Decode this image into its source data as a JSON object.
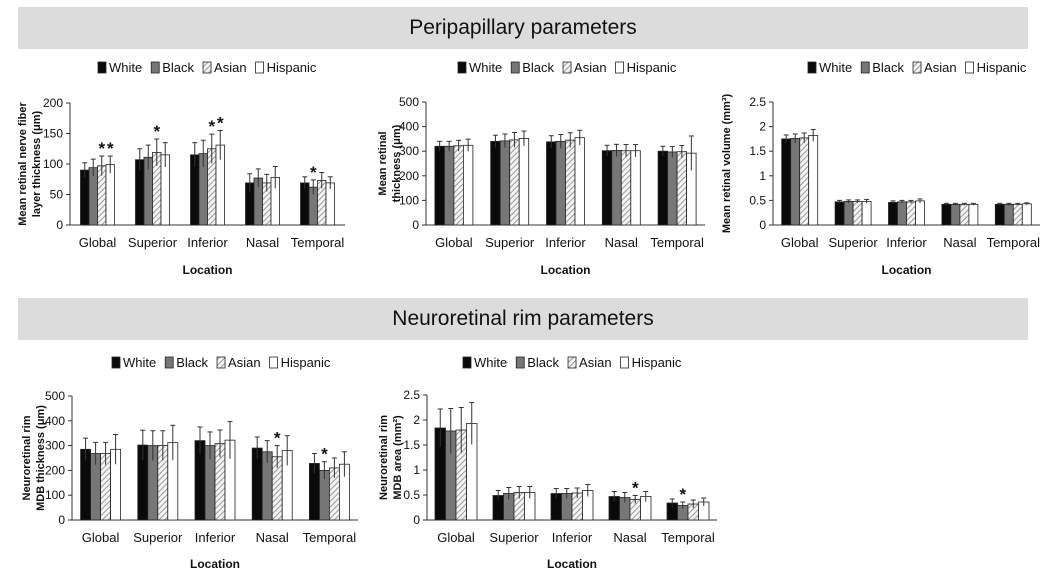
{
  "banners": {
    "peripapillary": "Peripapillary parameters",
    "neuroretinal": "Neuroretinal rim parameters"
  },
  "colors": {
    "White": "#0a0a0a",
    "Black": "#777777",
    "Asian": "hatch",
    "Hispanic": "#ffffff",
    "banner": "#dcdcdc"
  },
  "chart_data": [
    {
      "type": "bar",
      "group": "Peripapillary parameters",
      "ylabel": "Mean retinal nerve fiber layer thickness (μm)",
      "xlabel": "Location",
      "categories": [
        "Global",
        "Superior",
        "Inferior",
        "Nasal",
        "Temporal"
      ],
      "ylim": [
        0,
        200
      ],
      "yticks": [
        0,
        50,
        100,
        150,
        200
      ],
      "legend": "top",
      "series": [
        {
          "name": "White",
          "values": [
            90,
            107,
            115,
            69,
            69
          ],
          "errors": [
            12,
            18,
            20,
            15,
            10
          ]
        },
        {
          "name": "Black",
          "values": [
            94,
            111,
            117,
            77,
            62
          ],
          "errors": [
            14,
            20,
            22,
            15,
            12
          ]
        },
        {
          "name": "Asian",
          "values": [
            97,
            119,
            125,
            69,
            73
          ],
          "errors": [
            16,
            22,
            24,
            14,
            13
          ]
        },
        {
          "name": "Hispanic",
          "values": [
            99,
            115,
            131,
            78,
            69
          ],
          "errors": [
            14,
            20,
            24,
            18,
            10
          ]
        }
      ],
      "annotations": [
        {
          "category": "Global",
          "series": "Asian",
          "text": "*"
        },
        {
          "category": "Global",
          "series": "Hispanic",
          "text": "*"
        },
        {
          "category": "Superior",
          "series": "Asian",
          "text": "*"
        },
        {
          "category": "Inferior",
          "series": "Asian",
          "text": "*"
        },
        {
          "category": "Inferior",
          "series": "Hispanic",
          "text": "*"
        },
        {
          "category": "Temporal",
          "series": "Black",
          "text": "*"
        }
      ]
    },
    {
      "type": "bar",
      "group": "Peripapillary parameters",
      "ylabel": "Mean retinal thickness (μm)",
      "xlabel": "Location",
      "categories": [
        "Global",
        "Superior",
        "Inferior",
        "Nasal",
        "Temporal"
      ],
      "ylim": [
        0,
        500
      ],
      "yticks": [
        0,
        100,
        200,
        300,
        400,
        500
      ],
      "legend": "top",
      "series": [
        {
          "name": "White",
          "values": [
            320,
            340,
            338,
            302,
            300
          ],
          "errors": [
            20,
            25,
            25,
            22,
            20
          ]
        },
        {
          "name": "Black",
          "values": [
            320,
            342,
            340,
            303,
            297
          ],
          "errors": [
            20,
            28,
            28,
            25,
            22
          ]
        },
        {
          "name": "Asian",
          "values": [
            322,
            346,
            345,
            302,
            298
          ],
          "errors": [
            22,
            30,
            30,
            25,
            25
          ]
        },
        {
          "name": "Hispanic",
          "values": [
            324,
            352,
            355,
            302,
            292
          ],
          "errors": [
            25,
            30,
            30,
            25,
            70
          ]
        }
      ],
      "annotations": []
    },
    {
      "type": "bar",
      "group": "Peripapillary parameters",
      "ylabel": "Mean retinal volume (mm³)",
      "xlabel": "Location",
      "categories": [
        "Global",
        "Superior",
        "Inferior",
        "Nasal",
        "Temporal"
      ],
      "ylim": [
        0,
        2.5
      ],
      "yticks": [
        0,
        0.5,
        1,
        1.5,
        2,
        2.5
      ],
      "legend": "top",
      "series": [
        {
          "name": "White",
          "values": [
            1.75,
            0.47,
            0.46,
            0.42,
            0.42
          ],
          "errors": [
            0.08,
            0.03,
            0.03,
            0.02,
            0.02
          ]
        },
        {
          "name": "Black",
          "values": [
            1.76,
            0.48,
            0.47,
            0.42,
            0.42
          ],
          "errors": [
            0.09,
            0.03,
            0.03,
            0.02,
            0.02
          ]
        },
        {
          "name": "Asian",
          "values": [
            1.77,
            0.48,
            0.47,
            0.42,
            0.42
          ],
          "errors": [
            0.1,
            0.03,
            0.03,
            0.02,
            0.02
          ]
        },
        {
          "name": "Hispanic",
          "values": [
            1.82,
            0.48,
            0.49,
            0.42,
            0.43
          ],
          "errors": [
            0.12,
            0.04,
            0.04,
            0.02,
            0.02
          ]
        }
      ],
      "annotations": []
    },
    {
      "type": "bar",
      "group": "Neuroretinal rim parameters",
      "ylabel": "Neuroretinal rim MDB thickness (μm)",
      "xlabel": "Location",
      "categories": [
        "Global",
        "Superior",
        "Inferior",
        "Nasal",
        "Temporal"
      ],
      "ylim": [
        0,
        500
      ],
      "yticks": [
        0,
        100,
        200,
        300,
        400,
        500
      ],
      "legend": "top",
      "series": [
        {
          "name": "White",
          "values": [
            285,
            302,
            320,
            290,
            228
          ],
          "errors": [
            45,
            60,
            55,
            45,
            40
          ]
        },
        {
          "name": "Black",
          "values": [
            268,
            300,
            300,
            275,
            200
          ],
          "errors": [
            45,
            60,
            55,
            45,
            35
          ]
        },
        {
          "name": "Asian",
          "values": [
            268,
            300,
            308,
            255,
            210
          ],
          "errors": [
            45,
            60,
            55,
            45,
            40
          ]
        },
        {
          "name": "Hispanic",
          "values": [
            285,
            312,
            322,
            280,
            225
          ],
          "errors": [
            60,
            70,
            75,
            60,
            50
          ]
        }
      ],
      "annotations": [
        {
          "category": "Nasal",
          "series": "Asian",
          "text": "*"
        },
        {
          "category": "Temporal",
          "series": "Black",
          "text": "*"
        }
      ]
    },
    {
      "type": "bar",
      "group": "Neuroretinal rim parameters",
      "ylabel": "Neuroretinal rim MDB area (mm²)",
      "xlabel": "Location",
      "categories": [
        "Global",
        "Superior",
        "Inferior",
        "Nasal",
        "Temporal"
      ],
      "ylim": [
        0,
        2.5
      ],
      "yticks": [
        0,
        0.5,
        1,
        1.5,
        2,
        2.5
      ],
      "legend": "top",
      "series": [
        {
          "name": "White",
          "values": [
            1.84,
            0.49,
            0.53,
            0.47,
            0.34
          ],
          "errors": [
            0.38,
            0.1,
            0.1,
            0.1,
            0.08
          ]
        },
        {
          "name": "Black",
          "values": [
            1.78,
            0.53,
            0.53,
            0.45,
            0.29
          ],
          "errors": [
            0.45,
            0.12,
            0.1,
            0.1,
            0.07
          ]
        },
        {
          "name": "Asian",
          "values": [
            1.8,
            0.55,
            0.54,
            0.41,
            0.32
          ],
          "errors": [
            0.45,
            0.12,
            0.1,
            0.08,
            0.08
          ]
        },
        {
          "name": "Hispanic",
          "values": [
            1.93,
            0.55,
            0.59,
            0.47,
            0.36
          ],
          "errors": [
            0.42,
            0.12,
            0.12,
            0.1,
            0.08
          ]
        }
      ],
      "annotations": [
        {
          "category": "Nasal",
          "series": "Asian",
          "text": "*"
        },
        {
          "category": "Temporal",
          "series": "Black",
          "text": "*"
        }
      ]
    }
  ]
}
